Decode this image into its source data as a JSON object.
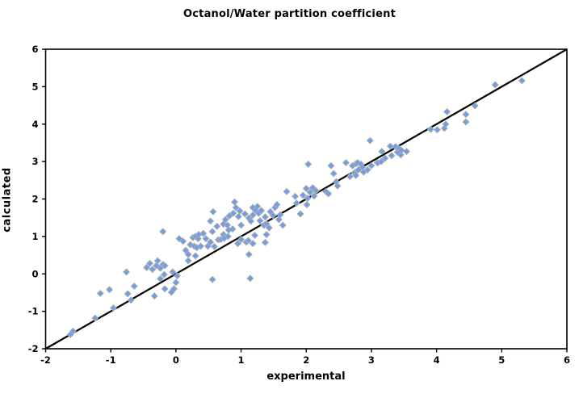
{
  "chart_data": {
    "type": "scatter",
    "title": "Octanol/Water partition coefficient",
    "xlabel": "experimental",
    "ylabel": "calculated",
    "xlim": [
      -2,
      6
    ],
    "ylim": [
      -2,
      6
    ],
    "xticks": [
      -2,
      -1,
      0,
      1,
      2,
      3,
      4,
      5,
      6
    ],
    "yticks": [
      -2,
      -1,
      0,
      1,
      2,
      3,
      4,
      5,
      6
    ],
    "grid": false,
    "legend": false,
    "frame": true,
    "axis_color": "#000000",
    "background": "#ffffff",
    "identity_line": {
      "from": [
        -2,
        -2
      ],
      "to": [
        6,
        6
      ],
      "color": "#000000"
    },
    "marker": {
      "shape": "diamond",
      "fill": "#6D9EEC",
      "border": "#ACACAC"
    },
    "points": [
      [
        -1.62,
        -1.62
      ],
      [
        -1.58,
        -1.53
      ],
      [
        -1.24,
        -1.18
      ],
      [
        -1.16,
        -0.52
      ],
      [
        -1.02,
        -0.42
      ],
      [
        -0.96,
        -0.91
      ],
      [
        -0.76,
        0.05
      ],
      [
        -0.74,
        -0.53
      ],
      [
        -0.69,
        -0.7
      ],
      [
        -0.64,
        -0.33
      ],
      [
        -0.45,
        0.17
      ],
      [
        -0.4,
        0.28
      ],
      [
        -0.36,
        0.12
      ],
      [
        -0.33,
        -0.59
      ],
      [
        -0.3,
        0.22
      ],
      [
        -0.28,
        0.35
      ],
      [
        -0.24,
        0.15
      ],
      [
        -0.24,
        -0.13
      ],
      [
        -0.2,
        0.25
      ],
      [
        -0.2,
        1.13
      ],
      [
        -0.18,
        -0.02
      ],
      [
        -0.17,
        0.22
      ],
      [
        -0.17,
        -0.4
      ],
      [
        -0.07,
        -0.49
      ],
      [
        -0.05,
        0.05
      ],
      [
        -0.03,
        -0.4
      ],
      [
        0.0,
        -0.23
      ],
      [
        0.02,
        -0.05
      ],
      [
        0.05,
        0.94
      ],
      [
        0.11,
        0.87
      ],
      [
        0.15,
        0.63
      ],
      [
        0.19,
        0.35
      ],
      [
        0.19,
        0.52
      ],
      [
        0.22,
        0.78
      ],
      [
        0.26,
        0.97
      ],
      [
        0.28,
        0.74
      ],
      [
        0.3,
        0.48
      ],
      [
        0.3,
        1.0
      ],
      [
        0.32,
        0.7
      ],
      [
        0.34,
        0.94
      ],
      [
        0.35,
        1.05
      ],
      [
        0.38,
        0.74
      ],
      [
        0.42,
        1.08
      ],
      [
        0.46,
        0.94
      ],
      [
        0.49,
        0.74
      ],
      [
        0.53,
        0.85
      ],
      [
        0.53,
        1.41
      ],
      [
        0.56,
        -0.15
      ],
      [
        0.56,
        1.13
      ],
      [
        0.57,
        1.66
      ],
      [
        0.59,
        0.73
      ],
      [
        0.63,
        1.27
      ],
      [
        0.65,
        0.91
      ],
      [
        0.69,
        0.92
      ],
      [
        0.73,
        1.05
      ],
      [
        0.73,
        1.33
      ],
      [
        0.74,
        0.95
      ],
      [
        0.76,
        1.45
      ],
      [
        0.79,
        1.3
      ],
      [
        0.8,
        1.0
      ],
      [
        0.81,
        1.17
      ],
      [
        0.82,
        1.55
      ],
      [
        0.87,
        1.2
      ],
      [
        0.88,
        1.62
      ],
      [
        0.9,
        1.92
      ],
      [
        0.92,
        1.77
      ],
      [
        0.95,
        0.81
      ],
      [
        0.96,
        1.53
      ],
      [
        0.98,
        1.68
      ],
      [
        1.0,
        0.92
      ],
      [
        1.0,
        1.3
      ],
      [
        1.06,
        1.6
      ],
      [
        1.08,
        0.85
      ],
      [
        1.11,
        0.89
      ],
      [
        1.12,
        0.52
      ],
      [
        1.12,
        1.49
      ],
      [
        1.14,
        -0.12
      ],
      [
        1.15,
        1.41
      ],
      [
        1.18,
        0.81
      ],
      [
        1.18,
        1.57
      ],
      [
        1.18,
        1.77
      ],
      [
        1.21,
        1.03
      ],
      [
        1.22,
        1.7
      ],
      [
        1.25,
        1.8
      ],
      [
        1.27,
        1.62
      ],
      [
        1.29,
        1.42
      ],
      [
        1.31,
        1.69
      ],
      [
        1.35,
        1.3
      ],
      [
        1.37,
        0.84
      ],
      [
        1.37,
        1.52
      ],
      [
        1.39,
        1.05
      ],
      [
        1.39,
        1.34
      ],
      [
        1.43,
        1.23
      ],
      [
        1.45,
        1.66
      ],
      [
        1.49,
        1.56
      ],
      [
        1.52,
        1.77
      ],
      [
        1.55,
        1.85
      ],
      [
        1.58,
        1.45
      ],
      [
        1.6,
        1.58
      ],
      [
        1.64,
        1.3
      ],
      [
        1.7,
        2.2
      ],
      [
        1.83,
        2.07
      ],
      [
        1.85,
        1.89
      ],
      [
        1.91,
        1.6
      ],
      [
        1.95,
        2.1
      ],
      [
        2.0,
        2.28
      ],
      [
        2.01,
        1.85
      ],
      [
        2.02,
        2.02
      ],
      [
        2.03,
        2.93
      ],
      [
        2.06,
        2.18
      ],
      [
        2.1,
        2.3
      ],
      [
        2.12,
        2.08
      ],
      [
        2.15,
        2.22
      ],
      [
        2.3,
        2.2
      ],
      [
        2.34,
        2.14
      ],
      [
        2.38,
        2.89
      ],
      [
        2.42,
        2.68
      ],
      [
        2.46,
        2.46
      ],
      [
        2.48,
        2.35
      ],
      [
        2.61,
        2.97
      ],
      [
        2.67,
        2.6
      ],
      [
        2.71,
        2.89
      ],
      [
        2.74,
        2.7
      ],
      [
        2.76,
        2.63
      ],
      [
        2.76,
        2.94
      ],
      [
        2.79,
        2.97
      ],
      [
        2.8,
        2.78
      ],
      [
        2.84,
        2.93
      ],
      [
        2.86,
        2.85
      ],
      [
        2.88,
        2.72
      ],
      [
        2.94,
        2.78
      ],
      [
        2.98,
        3.56
      ],
      [
        3.0,
        2.89
      ],
      [
        3.09,
        2.97
      ],
      [
        3.1,
        2.97
      ],
      [
        3.15,
        3.0
      ],
      [
        3.16,
        3.27
      ],
      [
        3.21,
        3.09
      ],
      [
        3.29,
        3.41
      ],
      [
        3.31,
        3.16
      ],
      [
        3.37,
        3.4
      ],
      [
        3.4,
        3.25
      ],
      [
        3.42,
        3.35
      ],
      [
        3.45,
        3.18
      ],
      [
        3.46,
        3.3
      ],
      [
        3.54,
        3.27
      ],
      [
        3.91,
        3.86
      ],
      [
        4.01,
        3.85
      ],
      [
        4.12,
        3.89
      ],
      [
        4.14,
        4.0
      ],
      [
        4.16,
        4.33
      ],
      [
        4.45,
        4.06
      ],
      [
        4.45,
        4.26
      ],
      [
        4.59,
        4.49
      ],
      [
        4.9,
        5.05
      ],
      [
        5.31,
        5.16
      ]
    ]
  }
}
